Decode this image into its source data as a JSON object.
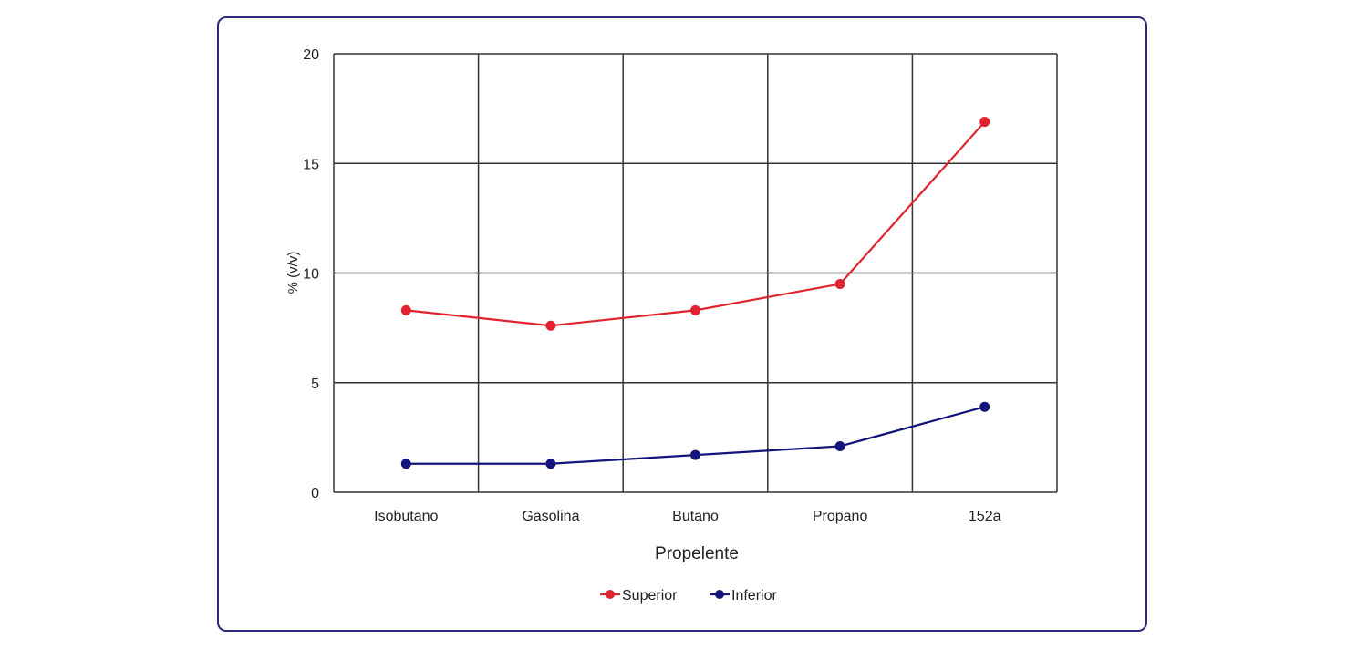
{
  "colors": {
    "superior": "#e0232e",
    "inferior": "#14157a",
    "grid": "#333333",
    "frame": "#2b2a7a"
  },
  "chart_data": {
    "type": "line",
    "categories": [
      "Isobutano",
      "Gasolina",
      "Butano",
      "Propano",
      "152a"
    ],
    "series": [
      {
        "name": "Superior",
        "values": [
          8.3,
          7.6,
          8.3,
          9.5,
          16.9
        ]
      },
      {
        "name": "Inferior",
        "values": [
          1.3,
          1.3,
          1.7,
          2.1,
          3.9
        ]
      }
    ],
    "xlabel": "Propelente",
    "ylabel": "% (v/v)",
    "ylim": [
      0,
      20
    ],
    "yticks": [
      0,
      5,
      10,
      15,
      20
    ],
    "grid": true,
    "legend": "bottom-center"
  }
}
